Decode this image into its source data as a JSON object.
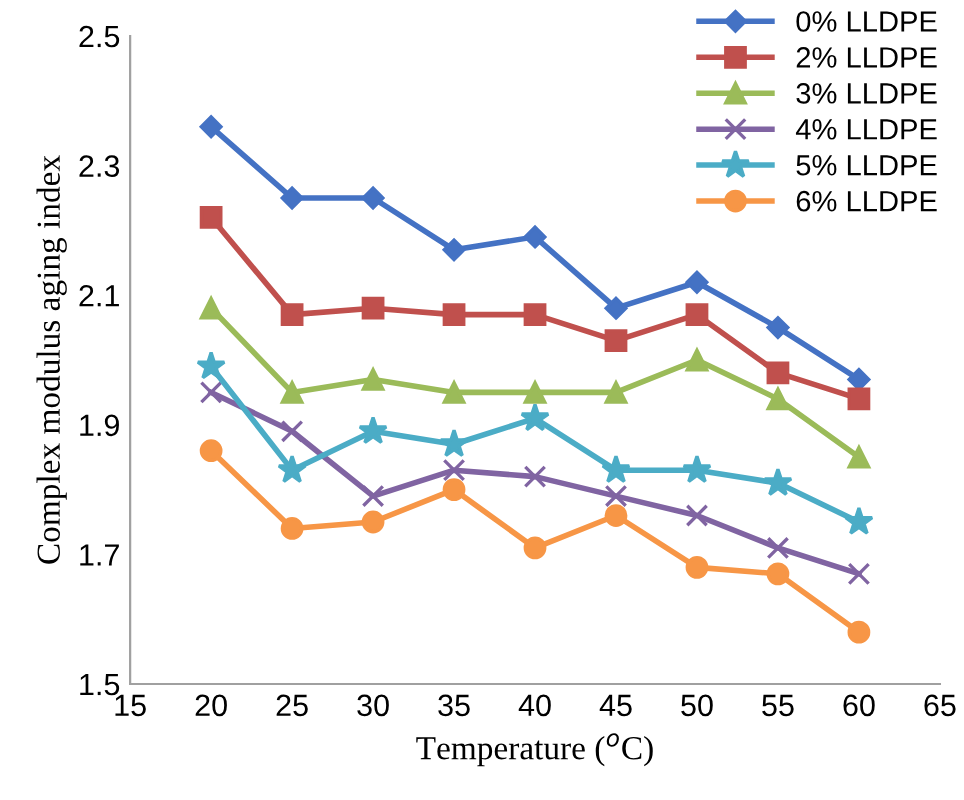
{
  "chart_data": {
    "type": "line",
    "xlabel": "Temperature ($^{o}$C)",
    "ylabel": "Complex modulus aging index",
    "x": [
      20,
      25,
      30,
      35,
      40,
      45,
      50,
      55,
      60
    ],
    "xlim": [
      15,
      65
    ],
    "xticks": [
      15,
      20,
      25,
      30,
      35,
      40,
      45,
      50,
      55,
      60,
      65
    ],
    "ylim": [
      1.5,
      2.5
    ],
    "yticks": [
      1.5,
      1.7,
      1.9,
      2.1,
      2.3,
      2.5
    ],
    "grid": false,
    "legend": "top right",
    "line_style": "solid",
    "series": [
      {
        "name": "0% LLDPE",
        "color": "#4472c4",
        "marker": "diamond",
        "values": [
          2.36,
          2.25,
          2.25,
          2.17,
          2.19,
          2.08,
          2.12,
          2.05,
          1.97
        ]
      },
      {
        "name": "2% LLDPE",
        "color": "#c0504d",
        "marker": "square",
        "values": [
          2.22,
          2.07,
          2.08,
          2.07,
          2.07,
          2.03,
          2.07,
          1.98,
          1.94
        ]
      },
      {
        "name": "3% LLDPE",
        "color": "#9bbb59",
        "marker": "triangle",
        "values": [
          2.08,
          1.95,
          1.97,
          1.95,
          1.95,
          1.95,
          2.0,
          1.94,
          1.85
        ]
      },
      {
        "name": "4% LLDPE",
        "color": "#8064a2",
        "marker": "cross",
        "values": [
          1.95,
          1.89,
          1.79,
          1.83,
          1.82,
          1.79,
          1.76,
          1.71,
          1.67
        ]
      },
      {
        "name": "5% LLDPE",
        "color": "#4bacc6",
        "marker": "star",
        "values": [
          1.99,
          1.83,
          1.89,
          1.87,
          1.91,
          1.83,
          1.83,
          1.81,
          1.75
        ]
      },
      {
        "name": "6% LLDPE",
        "color": "#f79646",
        "marker": "circle",
        "values": [
          1.86,
          1.74,
          1.75,
          1.8,
          1.71,
          1.76,
          1.68,
          1.67,
          1.58
        ]
      }
    ]
  }
}
